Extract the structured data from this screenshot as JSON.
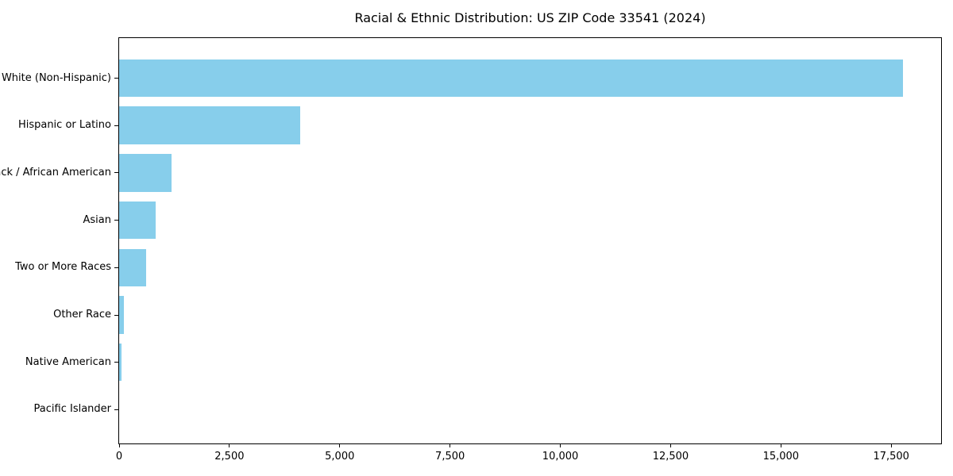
{
  "chart_data": {
    "type": "bar",
    "orientation": "horizontal",
    "title": "Racial & Ethnic Distribution: US ZIP Code 33541 (2024)",
    "xlabel": "",
    "ylabel": "",
    "categories": [
      "White (Non-Hispanic)",
      "Hispanic or Latino",
      "Black / African American",
      "Asian",
      "Two or More Races",
      "Other Race",
      "Native American",
      "Pacific Islander"
    ],
    "values": [
      17770,
      4100,
      1190,
      830,
      610,
      110,
      55,
      0
    ],
    "xlim": [
      0,
      18630
    ],
    "x_ticks": [
      0,
      2500,
      5000,
      7500,
      10000,
      12500,
      15000,
      17500
    ],
    "x_tick_labels": [
      "0",
      "2,500",
      "5,000",
      "7,500",
      "10,000",
      "12,500",
      "15,000",
      "17,500"
    ],
    "bar_color": "#87CEEB",
    "axis_color": "#000000",
    "text_color": "#000000",
    "background_color": "#ffffff",
    "grid": false,
    "legend": null
  }
}
